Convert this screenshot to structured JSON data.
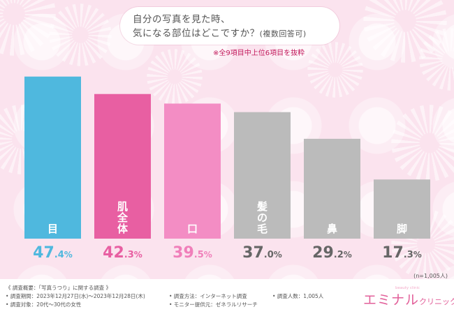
{
  "title": {
    "line1": "自分の写真を見た時、",
    "line2": "気になる部位はどこですか？",
    "line2_suffix": "(複数回答可)"
  },
  "subtitle": "※全9項目中上位6項目を抜粋",
  "sample_size": "(n=1,005人)",
  "chart_data": {
    "type": "bar",
    "categories": [
      "目",
      "肌全体",
      "口",
      "髪の毛",
      "鼻",
      "脚"
    ],
    "values": [
      47.4,
      42.3,
      39.5,
      37.0,
      29.2,
      17.3
    ],
    "value_labels": [
      {
        "int": "47",
        "dec": ".4",
        "unit": "%"
      },
      {
        "int": "42",
        "dec": ".3",
        "unit": "%"
      },
      {
        "int": "39",
        "dec": ".5",
        "unit": "%"
      },
      {
        "int": "37",
        "dec": ".0",
        "unit": "%"
      },
      {
        "int": "29",
        "dec": ".2",
        "unit": "%"
      },
      {
        "int": "17",
        "dec": ".3",
        "unit": "%"
      }
    ],
    "unit": "%",
    "colors": [
      "#4fb8de",
      "#e85fa2",
      "#f38dc4",
      "#bbbbbb",
      "#bbbbbb",
      "#bbbbbb"
    ],
    "label_colors": [
      "#4fb8de",
      "#e85fa2",
      "#f07fba",
      "#666666",
      "#666666",
      "#666666"
    ],
    "ylim": [
      0,
      50
    ]
  },
  "footer": {
    "overview": "《 調査概要：「写真うつり」に関する調査 》",
    "period": "• 調査期間：2023年12月27日(水)〜2023年12月28日(木)",
    "target": "• 調査対象：20代〜30代の女性",
    "method": "• 調査方法：インターネット調査",
    "provider": "• モニター提供元：ゼネラルリサーチ",
    "respondents": "• 調査人数：1,005人"
  },
  "logo": {
    "main": "エミナル",
    "sub": "クリニック",
    "tagline": "beauty clinic"
  }
}
